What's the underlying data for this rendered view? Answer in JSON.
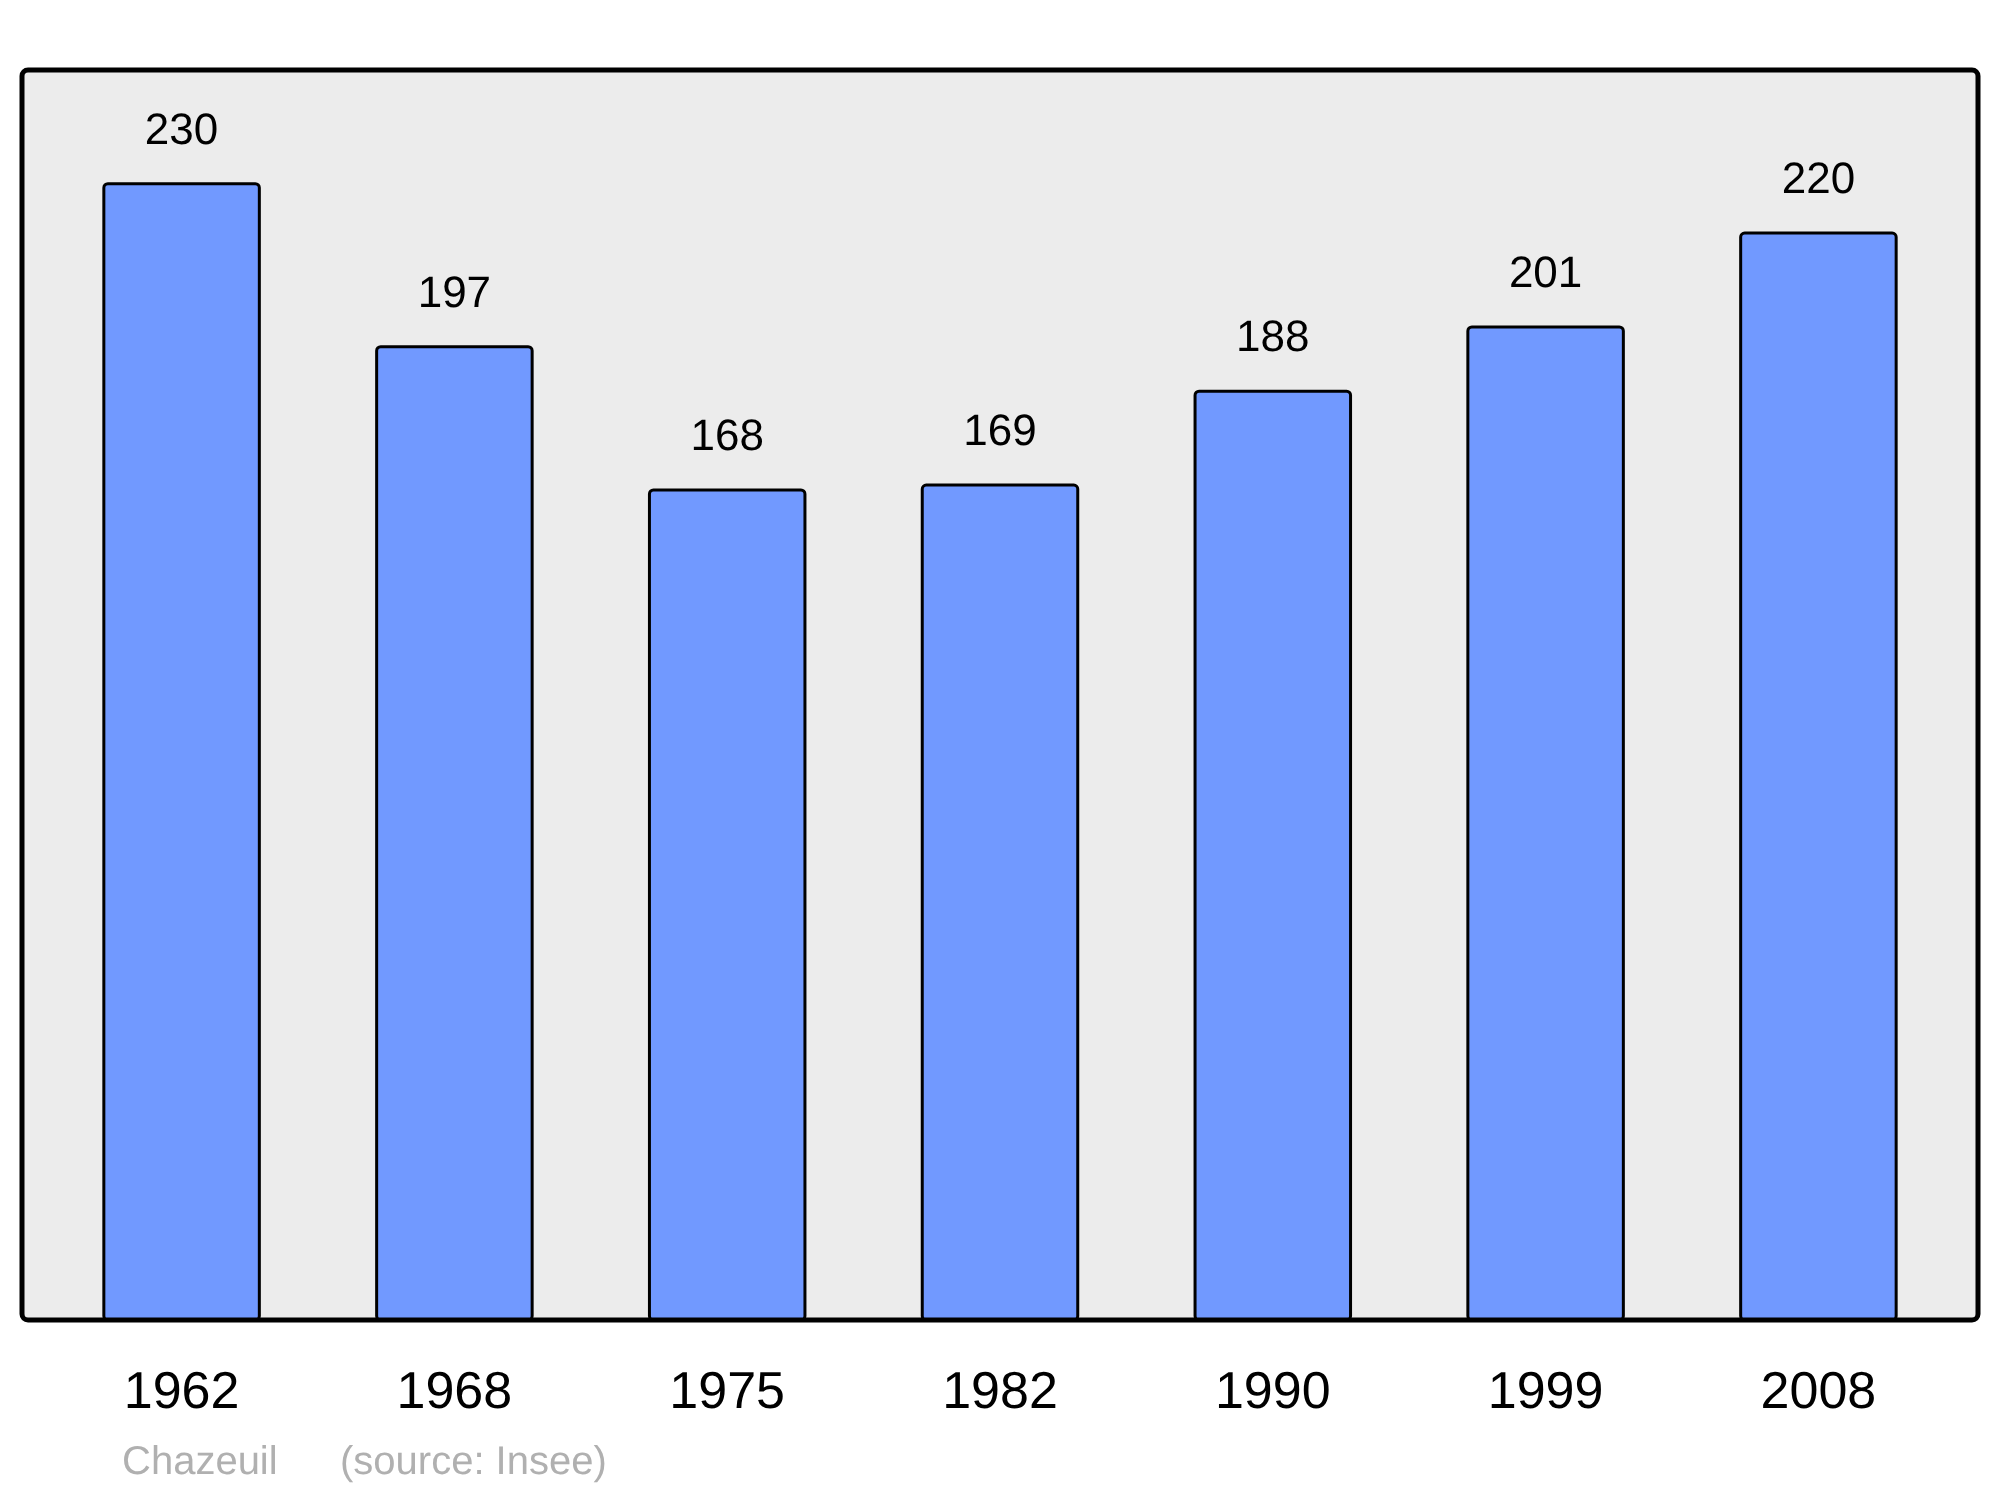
{
  "chart_data": {
    "type": "bar",
    "categories": [
      "1962",
      "1968",
      "1975",
      "1982",
      "1990",
      "1999",
      "2008"
    ],
    "values": [
      230,
      197,
      168,
      169,
      188,
      201,
      220
    ],
    "color": "#7199ff",
    "data_labels": true,
    "annotations": [
      "Chazeuil",
      "(source: Insee)"
    ]
  }
}
